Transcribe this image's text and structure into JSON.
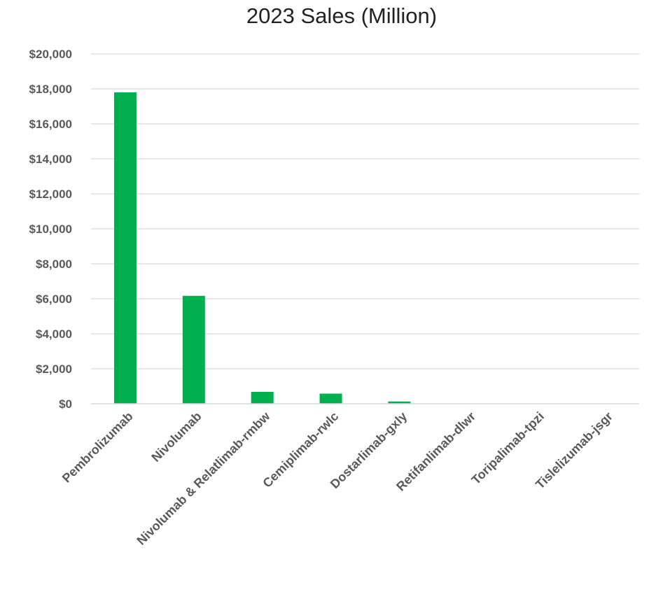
{
  "chart_data": {
    "type": "bar",
    "title": "2023 Sales (Million)",
    "xlabel": "",
    "ylabel": "",
    "categories": [
      "Pembrolizumab",
      "Nivolumab",
      "Nivolumab & Relatlimab-rmbw",
      "Cemiplimab-rwlc",
      "Dostarlimab-gxly",
      "Retifanlimab-dlwr",
      "Toripalimab-tpzi",
      "Tislelizumab-jsgr"
    ],
    "values": [
      17800,
      6170,
      680,
      580,
      130,
      0,
      0,
      0
    ],
    "ylim": [
      0,
      20000
    ],
    "yticks": [
      0,
      2000,
      4000,
      6000,
      8000,
      10000,
      12000,
      14000,
      16000,
      18000,
      20000
    ],
    "ytick_labels": [
      "$0",
      "$2,000",
      "$4,000",
      "$6,000",
      "$8,000",
      "$10,000",
      "$12,000",
      "$14,000",
      "$16,000",
      "$18,000",
      "$20,000"
    ],
    "bar_color": "#00b050",
    "grid": true,
    "legend": "none"
  }
}
